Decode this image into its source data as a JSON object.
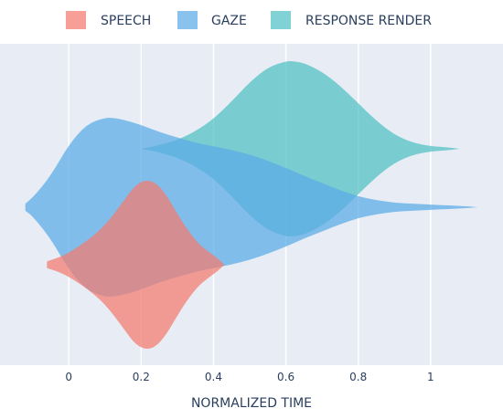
{
  "chart_data": {
    "type": "violin",
    "xlabel": "NORMALIZED TIME",
    "ylabel": "",
    "xlim": [
      -0.19,
      1.2
    ],
    "xticks": [
      0,
      0.2,
      0.4,
      0.6,
      0.8,
      1
    ],
    "xtick_labels": [
      "0",
      "0.2",
      "0.4",
      "0.6",
      "0.8",
      "1"
    ],
    "grid": true,
    "legend": {
      "placement": "top"
    },
    "series": [
      {
        "name": "RESPONSE RENDER",
        "color": "#4fc1c3",
        "range": [
          0.2,
          1.08
        ],
        "density_x": [
          0.2,
          0.25,
          0.3,
          0.35,
          0.4,
          0.45,
          0.5,
          0.55,
          0.6,
          0.62,
          0.65,
          0.7,
          0.75,
          0.8,
          0.85,
          0.9,
          0.95,
          1.0,
          1.04,
          1.08
        ],
        "density": [
          0.0,
          0.04,
          0.1,
          0.2,
          0.34,
          0.54,
          0.76,
          0.93,
          1.0,
          1.0,
          0.98,
          0.88,
          0.72,
          0.52,
          0.32,
          0.16,
          0.07,
          0.03,
          0.02,
          0.0
        ]
      },
      {
        "name": "GAZE",
        "color": "#5aaae6",
        "range": [
          -0.12,
          1.13
        ],
        "density_x": [
          -0.12,
          -0.1,
          -0.05,
          0.0,
          0.05,
          0.1,
          0.12,
          0.15,
          0.2,
          0.25,
          0.3,
          0.35,
          0.4,
          0.45,
          0.5,
          0.55,
          0.6,
          0.65,
          0.7,
          0.75,
          0.8,
          0.85,
          0.9,
          0.95,
          1.0,
          1.05,
          1.1,
          1.13
        ],
        "density": [
          0.04,
          0.1,
          0.35,
          0.7,
          0.93,
          1.0,
          1.0,
          0.98,
          0.92,
          0.84,
          0.78,
          0.72,
          0.68,
          0.64,
          0.59,
          0.52,
          0.44,
          0.35,
          0.27,
          0.19,
          0.12,
          0.08,
          0.05,
          0.04,
          0.03,
          0.02,
          0.01,
          0.0
        ]
      },
      {
        "name": "SPEECH",
        "color": "#f47a6e",
        "range": [
          -0.06,
          0.43
        ],
        "density_x": [
          -0.06,
          -0.03,
          0.0,
          0.05,
          0.1,
          0.15,
          0.18,
          0.21,
          0.24,
          0.27,
          0.3,
          0.33,
          0.36,
          0.39,
          0.41,
          0.43
        ],
        "density": [
          0.04,
          0.08,
          0.14,
          0.28,
          0.46,
          0.74,
          0.92,
          1.0,
          0.97,
          0.82,
          0.6,
          0.4,
          0.24,
          0.14,
          0.08,
          0.0
        ]
      }
    ]
  }
}
